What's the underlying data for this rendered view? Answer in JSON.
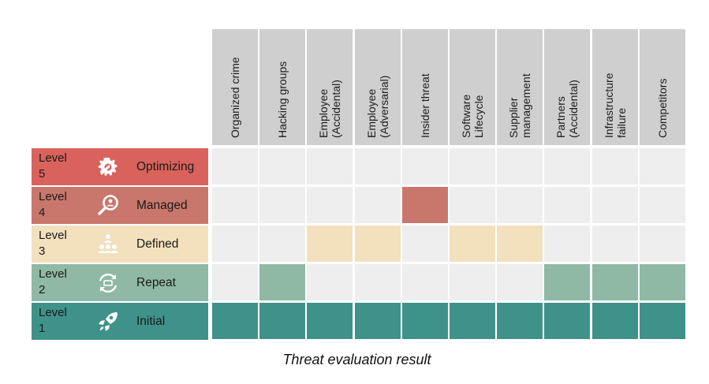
{
  "chart_data": {
    "type": "heatmap",
    "title": "Threat evaluation result",
    "columns": [
      "Organized crime",
      "Hacking groups",
      "Employee\n(Accidental)",
      "Employee\n(Adversarial)",
      "Insider threat",
      "Software\nLifecycle",
      "Supplier\nmanagement",
      "Partners\n(Accidental)",
      "Infrastructure\nfailure",
      "Competitors"
    ],
    "levels": [
      {
        "level": "Level\n5",
        "name": "Optimizing",
        "icon": "gear-wrench-icon",
        "color": "#d9635c"
      },
      {
        "level": "Level\n4",
        "name": "Managed",
        "icon": "magnifier-person-icon",
        "color": "#c9776c"
      },
      {
        "level": "Level\n3",
        "name": "Defined",
        "icon": "people-hierarchy-icon",
        "color": "#f3e0bd"
      },
      {
        "level": "Level\n2",
        "name": "Repeat",
        "icon": "repeat-cycle-icon",
        "color": "#8fb9a5"
      },
      {
        "level": "Level\n1",
        "name": "Initial",
        "icon": "rocket-icon",
        "color": "#3f928a"
      }
    ],
    "values": [
      1,
      2,
      3,
      3,
      4,
      3,
      3,
      2,
      2,
      2
    ],
    "empty_color": "#eeeeee",
    "header_color": "#cfcfcf"
  }
}
